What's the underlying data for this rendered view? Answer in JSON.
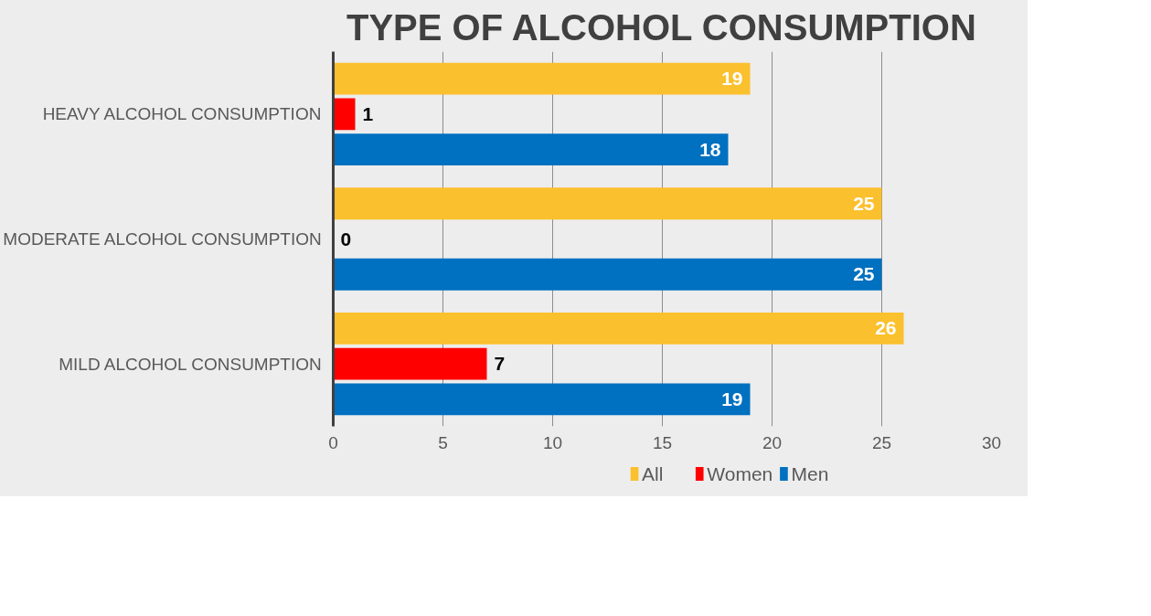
{
  "chart_data": {
    "type": "bar",
    "orientation": "horizontal",
    "title": "TYPE OF ALCOHOL CONSUMPTION",
    "categories": [
      "HEAVY ALCOHOL CONSUMPTION",
      "MODERATE ALCOHOL CONSUMPTION",
      "MILD ALCOHOL CONSUMPTION"
    ],
    "series": [
      {
        "name": "All",
        "color": "#fbc02d",
        "values": [
          19,
          25,
          26
        ]
      },
      {
        "name": "Women",
        "color": "#ff0000",
        "values": [
          1,
          0,
          7
        ]
      },
      {
        "name": "Men",
        "color": "#0070c0",
        "values": [
          18,
          25,
          19
        ]
      }
    ],
    "xlim": [
      0,
      30
    ],
    "xticks": [
      0,
      5,
      10,
      15,
      20,
      25,
      30
    ],
    "grid": "x",
    "legend": "bottom",
    "data_labels": true
  }
}
